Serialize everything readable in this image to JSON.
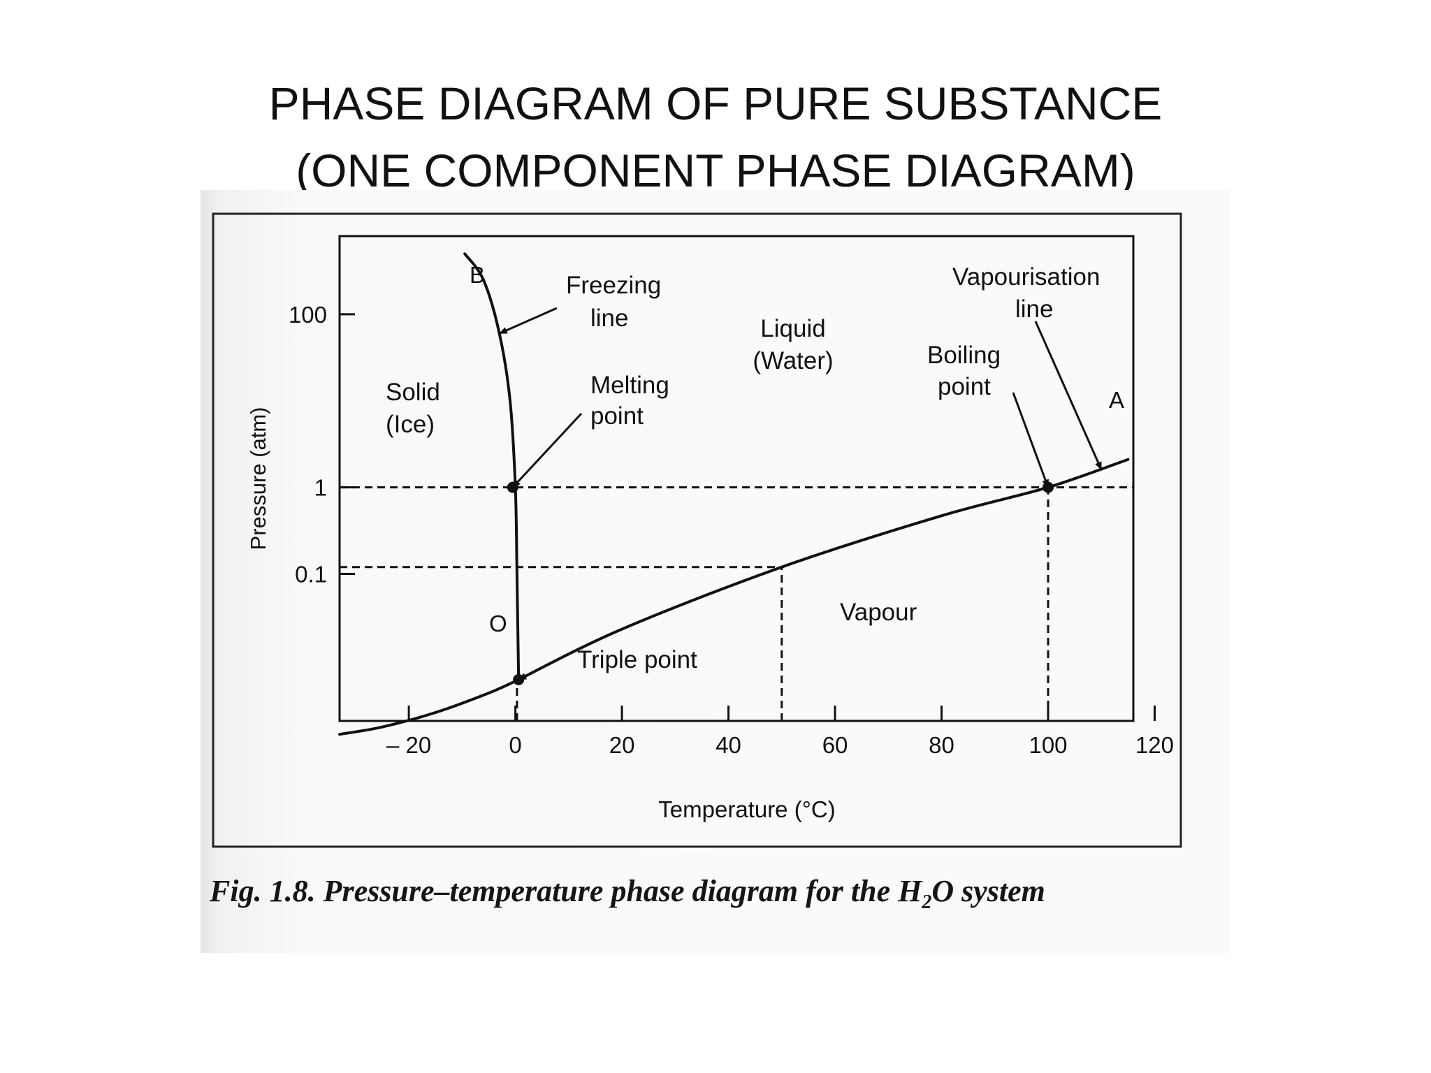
{
  "slide": {
    "title_line1": "PHASE DIAGRAM OF PURE SUBSTANCE",
    "title_line2": "(ONE COMPONENT PHASE DIAGRAM)"
  },
  "figure": {
    "caption_prefix": "Fig. 1.8. Pressure–temperature phase diagram for the H",
    "caption_sub": "2",
    "caption_suffix": "O system"
  },
  "chart_data": {
    "type": "line",
    "xlabel": "Temperature (°C)",
    "ylabel": "Pressure (atm)",
    "x_ticks": [
      {
        "value": -20,
        "label": "– 20"
      },
      {
        "value": 0,
        "label": "0"
      },
      {
        "value": 20,
        "label": "20"
      },
      {
        "value": 40,
        "label": "40"
      },
      {
        "value": 60,
        "label": "60"
      },
      {
        "value": 80,
        "label": "80"
      },
      {
        "value": 100,
        "label": "100"
      },
      {
        "value": 120,
        "label": "120"
      }
    ],
    "y_ticks": [
      {
        "value": 0.1,
        "label": "0.1"
      },
      {
        "value": 1,
        "label": "1"
      },
      {
        "value": 100,
        "label": "100"
      }
    ],
    "xlim": [
      -33,
      116
    ],
    "ylim": [
      0.002,
      800
    ],
    "y_scale": "log",
    "series": [
      {
        "name": "Freezing line",
        "x": [
          0.6,
          0.3,
          0,
          -1,
          -3,
          -6,
          -9.5
        ],
        "y": [
          0.006,
          0.1,
          1,
          10,
          60,
          250,
          500
        ]
      },
      {
        "name": "Vapourisation line",
        "x": [
          0.6,
          20,
          50,
          80,
          100,
          115
        ],
        "y": [
          0.006,
          0.023,
          0.12,
          0.47,
          1,
          2.1
        ]
      },
      {
        "name": "",
        "x": [
          -33,
          -25,
          -15,
          -5,
          0.6
        ],
        "y": [
          0.0014,
          0.0017,
          0.0025,
          0.0042,
          0.006
        ]
      }
    ],
    "points": [
      {
        "name": "Melting point",
        "x": -0.5,
        "y": 1
      },
      {
        "name": "Boiling point",
        "x": 100,
        "y": 1
      },
      {
        "name": "Triple point",
        "x": 0.6,
        "y": 0.006
      }
    ],
    "reference_lines": [
      {
        "orientation": "horizontal",
        "y": 1,
        "x_from": -33,
        "x_to": 116
      },
      {
        "orientation": "vertical",
        "x": 100,
        "y_from": 0.002,
        "y_to": 1
      },
      {
        "orientation": "horizontal",
        "y": 0.12,
        "x_from": -33,
        "x_to": 50
      },
      {
        "orientation": "vertical",
        "x": 50,
        "y_from": 0.002,
        "y_to": 0.12
      },
      {
        "orientation": "vertical",
        "x": 0.3,
        "y_from": 0.002,
        "y_to": 0.006
      }
    ],
    "annotations": [
      {
        "text": "B"
      },
      {
        "text": "A"
      },
      {
        "text": "O"
      },
      {
        "text": "Freezing"
      },
      {
        "text": "line"
      },
      {
        "text": "Liquid"
      },
      {
        "text": "(Water)"
      },
      {
        "text": "Vapourisation"
      },
      {
        "text": "line"
      },
      {
        "text": "Boiling"
      },
      {
        "text": "point"
      },
      {
        "text": "Solid"
      },
      {
        "text": "(Ice)"
      },
      {
        "text": "Melting"
      },
      {
        "text": "point"
      },
      {
        "text": "Vapour"
      },
      {
        "text": "Triple point"
      }
    ],
    "grid": false
  }
}
